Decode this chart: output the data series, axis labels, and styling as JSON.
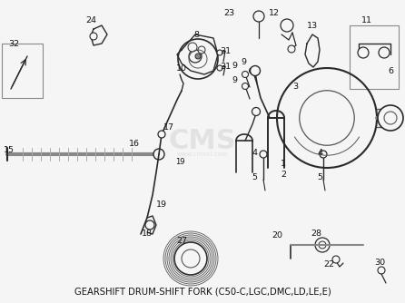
{
  "title": "GEARSHIFT DRUM-SHIFT FORK (C50-C,LGC,DMC,LD,LE,E)",
  "bg_color": "#f5f5f5",
  "text_color": "#111111",
  "line_color": "#2a2a2a",
  "gray": "#555555",
  "title_fontsize": 7.2,
  "label_fontsize": 6.8,
  "watermark_text": "CMS",
  "watermark_sub": "www.cmsnl.com",
  "fig_width": 4.46,
  "fig_height": 3.34,
  "dpi": 100
}
